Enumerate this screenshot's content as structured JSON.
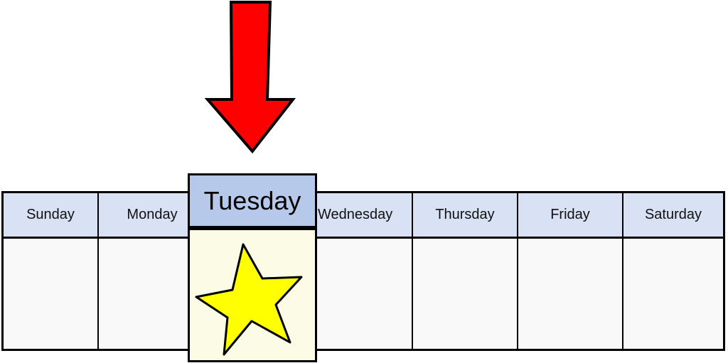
{
  "colors": {
    "arrow": "#ff0000",
    "header": "#d8e2f4",
    "today_header": "#b6c9eb",
    "today_cell": "#fbfbe6",
    "star": "#ffff00"
  },
  "days": [
    {
      "label": "Sunday"
    },
    {
      "label": "Monday"
    },
    {
      "label": "Tuesday"
    },
    {
      "label": "Wednesday"
    },
    {
      "label": "Thursday"
    },
    {
      "label": "Friday"
    },
    {
      "label": "Saturday"
    }
  ],
  "today": {
    "label": "Tuesday",
    "icon": "star-icon"
  },
  "indicator": {
    "icon": "down-arrow-icon"
  }
}
